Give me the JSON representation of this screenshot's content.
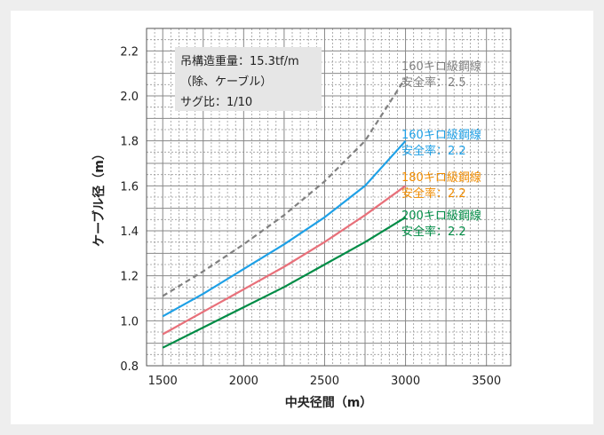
{
  "chart_data": {
    "type": "line",
    "xlabel": "中央径間（m）",
    "ylabel": "ケーブル径（m）",
    "xlim": [
      1400,
      3650
    ],
    "ylim": [
      0.8,
      2.3
    ],
    "x_ticks": [
      1500,
      2000,
      2500,
      3000,
      3500
    ],
    "y_ticks": [
      0.8,
      1.0,
      1.2,
      1.4,
      1.6,
      1.8,
      2.0,
      2.2
    ],
    "y_tick_labels": [
      "0.8",
      "1.0",
      "1.2",
      "1.4",
      "1.6",
      "1.8",
      "2.0",
      "2.2"
    ],
    "grid": true,
    "annotation": {
      "lines": [
        "吊構造重量：15.3tf/m",
        "（除、ケーブル）",
        "サグ比：1/10"
      ],
      "background": "#e6e6e6"
    },
    "series": [
      {
        "name": "160キロ級鋼線",
        "sub": "安全率：2.5",
        "color": "#808080",
        "dashed": true,
        "x": [
          1500,
          1750,
          2000,
          2250,
          2500,
          2750,
          3000
        ],
        "y": [
          1.11,
          1.22,
          1.34,
          1.47,
          1.62,
          1.8,
          2.08
        ]
      },
      {
        "name": "160キロ級鋼線",
        "sub": "安全率：2.2",
        "color": "#1ea0e6",
        "dashed": false,
        "x": [
          1500,
          1750,
          2000,
          2250,
          2500,
          2750,
          3000
        ],
        "y": [
          1.02,
          1.12,
          1.23,
          1.34,
          1.46,
          1.6,
          1.8
        ]
      },
      {
        "name": "180キロ級鋼線",
        "sub": "安全率：2.2",
        "color": "#f08c00",
        "line_color": "#e8707a",
        "dashed": false,
        "x": [
          1500,
          1750,
          2000,
          2250,
          2500,
          2750,
          3000
        ],
        "y": [
          0.94,
          1.04,
          1.14,
          1.24,
          1.35,
          1.47,
          1.6
        ]
      },
      {
        "name": "200キロ級鋼線",
        "sub": "安全率：2.2",
        "color": "#008c46",
        "dashed": false,
        "x": [
          1500,
          1750,
          2000,
          2250,
          2500,
          2750,
          3000
        ],
        "y": [
          0.88,
          0.97,
          1.06,
          1.15,
          1.25,
          1.35,
          1.46
        ]
      }
    ]
  }
}
